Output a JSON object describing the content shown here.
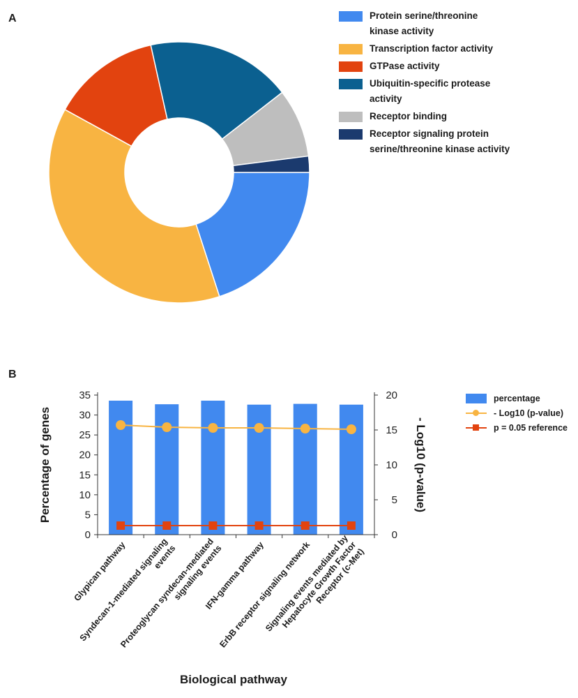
{
  "panels": {
    "a_label": "A",
    "b_label": "B"
  },
  "colors": {
    "protein_kinase": "#4189EF",
    "transcription": "#F8B442",
    "gtpase": "#E2430F",
    "ubiquitin": "#0B6090",
    "receptor_binding": "#BEBEBE",
    "receptor_signaling": "#1B3A6E",
    "percentage_bar": "#4189EF",
    "log_line": "#F8B442",
    "ref_line": "#E2430F"
  },
  "chart_data": [
    {
      "type": "pie",
      "variant": "donut",
      "title": "",
      "slices": [
        {
          "label": "Protein serine/threonine kinase activity",
          "value": 20.0,
          "color": "#4189EF"
        },
        {
          "label": "Transcription factor activity",
          "value": 38.0,
          "color": "#F8B442"
        },
        {
          "label": "GTPase activity",
          "value": 13.5,
          "color": "#E2430F"
        },
        {
          "label": "Ubiquitin-specific protease activity",
          "value": 18.0,
          "color": "#0B6090"
        },
        {
          "label": "Receptor binding",
          "value": 8.5,
          "color": "#BEBEBE"
        },
        {
          "label": "Receptor signaling protein serine/threonine kinase activity",
          "value": 2.0,
          "color": "#1B3A6E"
        }
      ],
      "legend_position": "right",
      "legend_lines": [
        [
          "Protein serine/threonine",
          "kinase activity"
        ],
        [
          "Transcription factor activity"
        ],
        [
          "GTPase activity"
        ],
        [
          "Ubiquitin-specific protease",
          "activity"
        ],
        [
          "Receptor binding"
        ],
        [
          "Receptor signaling protein",
          "serine/threonine kinase activity"
        ]
      ]
    },
    {
      "type": "bar",
      "title": "",
      "xlabel": "Biological pathway",
      "ylabel": "Percentage of genes",
      "y2label": "- Log10 (p-value)",
      "ylim": [
        0,
        35
      ],
      "y2lim": [
        0,
        20
      ],
      "yticks": [
        "0",
        "5",
        "10",
        "15",
        "20",
        "25",
        "30",
        "35"
      ],
      "y2ticks": [
        "0",
        "5",
        "10",
        "15",
        "20"
      ],
      "categories": [
        [
          "Glypican pathway"
        ],
        [
          "Syndecan-1-mediated signaling",
          "events"
        ],
        [
          "Proteoglycan syndecan-mediated",
          "signaling events"
        ],
        [
          "IFN-gamma pathway"
        ],
        [
          "ErbB receptor signaling network"
        ],
        [
          "Signaling events mediated by",
          "Hepatocyte Growth Factor",
          "Receptor (c-Met)"
        ]
      ],
      "series": [
        {
          "name": "percentage",
          "kind": "bar",
          "axis": "left",
          "values": [
            33.6,
            32.7,
            33.6,
            32.6,
            32.8,
            32.6
          ]
        },
        {
          "name": "- Log10 (p-value)",
          "kind": "line",
          "axis": "right",
          "values": [
            15.7,
            15.4,
            15.3,
            15.3,
            15.2,
            15.1
          ]
        },
        {
          "name": "p = 0.05 reference",
          "kind": "line",
          "axis": "right",
          "values": [
            1.3,
            1.3,
            1.3,
            1.3,
            1.3,
            1.3
          ]
        }
      ],
      "legend_position": "right"
    }
  ]
}
